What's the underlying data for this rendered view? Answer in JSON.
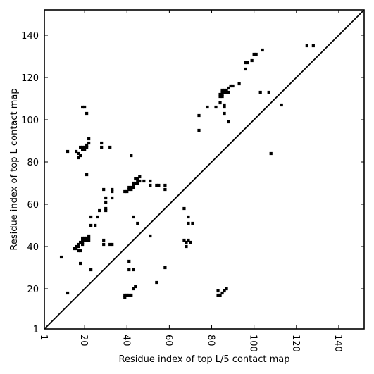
{
  "chart_data": {
    "type": "scatter",
    "title": "",
    "xlabel": "Residue index of top L/5 contact map",
    "ylabel": "Residue index of top L contact map",
    "xlim": [
      1,
      152
    ],
    "ylim": [
      1,
      152
    ],
    "xticks": [
      1,
      20,
      40,
      60,
      80,
      100,
      120,
      140
    ],
    "yticks": [
      1,
      20,
      40,
      60,
      80,
      100,
      120,
      140
    ],
    "grid": false,
    "marker": "square",
    "marker_color": "#000000",
    "diagonal": true,
    "points": [
      [
        9,
        35
      ],
      [
        12,
        18
      ],
      [
        12,
        85
      ],
      [
        15,
        39
      ],
      [
        16,
        39
      ],
      [
        16,
        40
      ],
      [
        16,
        85
      ],
      [
        17,
        40
      ],
      [
        17,
        41
      ],
      [
        17,
        38
      ],
      [
        17,
        84
      ],
      [
        17,
        82
      ],
      [
        18,
        32
      ],
      [
        18,
        42
      ],
      [
        18,
        38
      ],
      [
        18,
        83
      ],
      [
        18,
        87
      ],
      [
        19,
        106
      ],
      [
        19,
        41
      ],
      [
        19,
        42
      ],
      [
        19,
        43
      ],
      [
        19,
        44
      ],
      [
        19,
        86
      ],
      [
        19,
        87
      ],
      [
        20,
        43
      ],
      [
        20,
        44
      ],
      [
        20,
        86
      ],
      [
        20,
        87
      ],
      [
        20,
        106
      ],
      [
        21,
        43
      ],
      [
        21,
        44
      ],
      [
        21,
        74
      ],
      [
        21,
        103
      ],
      [
        21,
        87
      ],
      [
        21,
        88
      ],
      [
        22,
        43
      ],
      [
        22,
        44
      ],
      [
        22,
        45
      ],
      [
        22,
        89
      ],
      [
        22,
        91
      ],
      [
        23,
        29
      ],
      [
        23,
        50
      ],
      [
        23,
        54
      ],
      [
        25,
        50
      ],
      [
        26,
        54
      ],
      [
        27,
        57
      ],
      [
        28,
        87
      ],
      [
        28,
        89
      ],
      [
        29,
        67
      ],
      [
        29,
        41
      ],
      [
        29,
        43
      ],
      [
        30,
        58
      ],
      [
        30,
        57
      ],
      [
        30,
        61
      ],
      [
        30,
        63
      ],
      [
        32,
        41
      ],
      [
        32,
        87
      ],
      [
        33,
        41
      ],
      [
        33,
        63
      ],
      [
        33,
        66
      ],
      [
        33,
        67
      ],
      [
        39,
        16
      ],
      [
        39,
        17
      ],
      [
        39,
        66
      ],
      [
        40,
        17
      ],
      [
        40,
        66
      ],
      [
        41,
        17
      ],
      [
        41,
        67
      ],
      [
        41,
        68
      ],
      [
        41,
        33
      ],
      [
        41,
        29
      ],
      [
        42,
        67
      ],
      [
        42,
        68
      ],
      [
        42,
        17
      ],
      [
        42,
        83
      ],
      [
        43,
        68
      ],
      [
        43,
        69
      ],
      [
        43,
        70
      ],
      [
        43,
        20
      ],
      [
        43,
        54
      ],
      [
        43,
        29
      ],
      [
        44,
        21
      ],
      [
        44,
        70
      ],
      [
        44,
        72
      ],
      [
        45,
        71
      ],
      [
        45,
        72
      ],
      [
        45,
        70
      ],
      [
        45,
        51
      ],
      [
        46,
        73
      ],
      [
        46,
        71
      ],
      [
        48,
        71
      ],
      [
        51,
        71
      ],
      [
        51,
        69
      ],
      [
        51,
        45
      ],
      [
        54,
        23
      ],
      [
        54,
        69
      ],
      [
        55,
        69
      ],
      [
        58,
        30
      ],
      [
        58,
        67
      ],
      [
        58,
        69
      ],
      [
        67,
        58
      ],
      [
        67,
        43
      ],
      [
        68,
        40
      ],
      [
        68,
        42
      ],
      [
        69,
        54
      ],
      [
        69,
        51
      ],
      [
        69,
        43
      ],
      [
        70,
        42
      ],
      [
        71,
        51
      ],
      [
        74,
        102
      ],
      [
        74,
        95
      ],
      [
        78,
        106
      ],
      [
        82,
        106
      ],
      [
        83,
        17
      ],
      [
        83,
        19
      ],
      [
        84,
        17
      ],
      [
        84,
        108
      ],
      [
        84,
        111
      ],
      [
        84,
        112
      ],
      [
        85,
        18
      ],
      [
        85,
        111
      ],
      [
        85,
        112
      ],
      [
        85,
        113
      ],
      [
        85,
        114
      ],
      [
        86,
        19
      ],
      [
        86,
        103
      ],
      [
        86,
        106
      ],
      [
        86,
        107
      ],
      [
        86,
        113
      ],
      [
        86,
        114
      ],
      [
        87,
        20
      ],
      [
        87,
        113
      ],
      [
        87,
        114
      ],
      [
        88,
        99
      ],
      [
        88,
        113
      ],
      [
        88,
        115
      ],
      [
        89,
        116
      ],
      [
        90,
        116
      ],
      [
        93,
        117
      ],
      [
        96,
        124
      ],
      [
        96,
        127
      ],
      [
        97,
        127
      ],
      [
        99,
        128
      ],
      [
        100,
        131
      ],
      [
        101,
        131
      ],
      [
        103,
        113
      ],
      [
        104,
        133
      ],
      [
        107,
        113
      ],
      [
        108,
        84
      ],
      [
        113,
        107
      ],
      [
        125,
        135
      ],
      [
        128,
        135
      ]
    ]
  }
}
